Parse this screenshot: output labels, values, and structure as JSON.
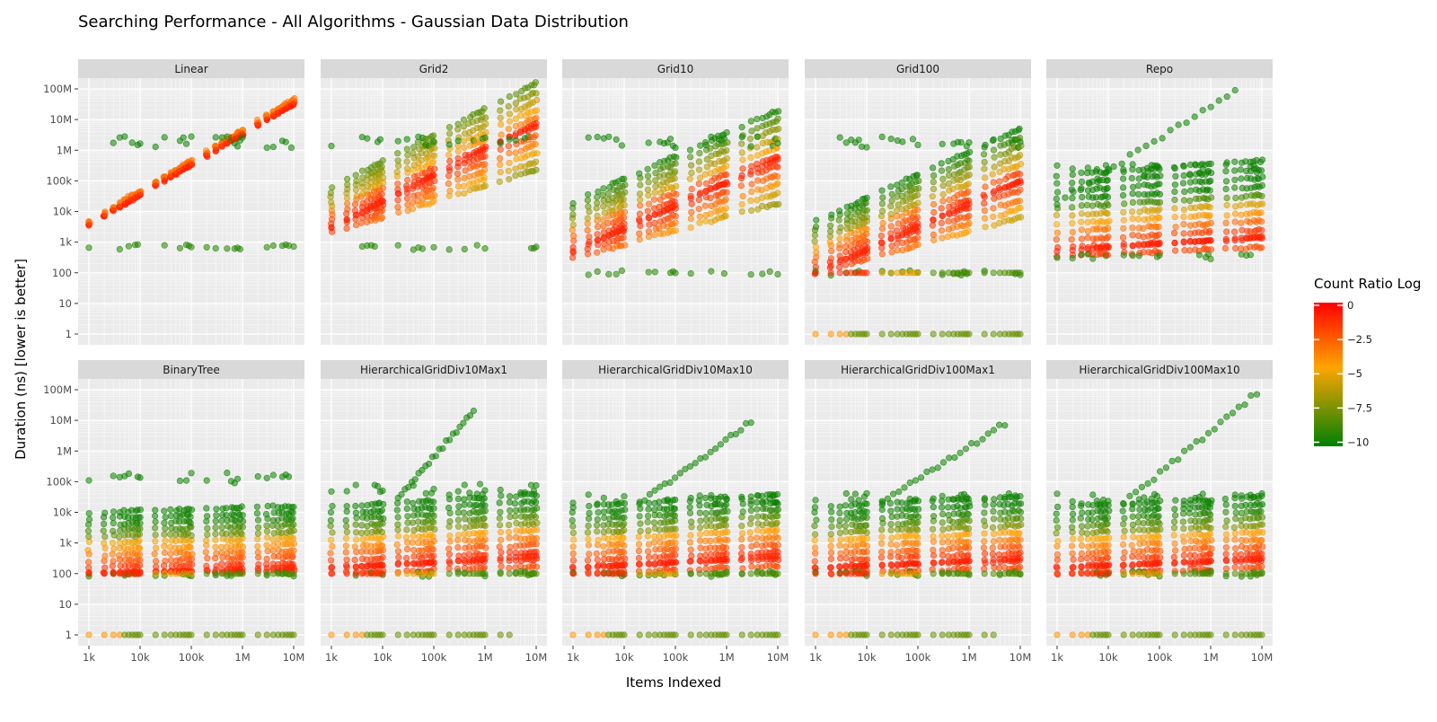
{
  "chart_data": {
    "type": "scatter",
    "title": "Searching Performance - All Algorithms - Gaussian Data Distribution",
    "xlabel": "Items Indexed",
    "ylabel": "Duration (ns) [lower is better]",
    "x_scale": "log",
    "y_scale": "log",
    "xlim": [
      1000,
      10000000
    ],
    "ylim": [
      1,
      100000000
    ],
    "x_ticks": [
      {
        "value": 1000,
        "label": "1k"
      },
      {
        "value": 10000,
        "label": "10k"
      },
      {
        "value": 100000,
        "label": "100k"
      },
      {
        "value": 1000000,
        "label": "1M"
      },
      {
        "value": 10000000,
        "label": "10M"
      }
    ],
    "y_ticks": [
      {
        "value": 1,
        "label": "1"
      },
      {
        "value": 10,
        "label": "10"
      },
      {
        "value": 100,
        "label": "100"
      },
      {
        "value": 1000,
        "label": "1k"
      },
      {
        "value": 10000,
        "label": "10k"
      },
      {
        "value": 100000,
        "label": "100k"
      },
      {
        "value": 1000000,
        "label": "1M"
      },
      {
        "value": 10000000,
        "label": "10M"
      },
      {
        "value": 100000000,
        "label": "100M"
      }
    ],
    "grid": true,
    "legend": {
      "title": "Count Ratio Log",
      "placement": "right",
      "type": "colorbar",
      "ticks": [
        {
          "value": 0,
          "label": "0"
        },
        {
          "value": -2.5,
          "label": "−2.5"
        },
        {
          "value": -5,
          "label": "−5"
        },
        {
          "value": -7.5,
          "label": "−7.5"
        },
        {
          "value": -10,
          "label": "−10"
        }
      ],
      "range": [
        -10.3,
        0.2
      ],
      "colors": {
        "high": "#ff0000",
        "mid": "#ffa500",
        "low": "#008000"
      }
    },
    "x_sizes": [
      1000,
      2000,
      3000,
      4000,
      5000,
      6000,
      7000,
      8000,
      9000,
      10000,
      20000,
      30000,
      40000,
      50000,
      60000,
      70000,
      80000,
      90000,
      100000,
      200000,
      300000,
      400000,
      500000,
      600000,
      700000,
      800000,
      900000,
      1000000,
      2000000,
      3000000,
      4000000,
      5000000,
      6000000,
      7000000,
      8000000,
      9000000,
      10000000
    ],
    "facets": [
      {
        "name": "Linear",
        "floor": 3500,
        "floor_slope": 0.99,
        "cloud_low": 3500,
        "cloud_high": 3500,
        "slope": 0.99,
        "spread": 0.15,
        "outlier_low": 700,
        "outlier_high": 2000000,
        "diag": [],
        "low_rows": []
      },
      {
        "name": "Grid2",
        "floor": 3000,
        "floor_slope": 0.85,
        "cloud_low": 2000,
        "cloud_high": 60000,
        "slope": 0.85,
        "spread": 0.5,
        "outlier_low": 700,
        "outlier_high": 2000000,
        "diag": [],
        "low_rows": []
      },
      {
        "name": "Grid10",
        "floor": 500,
        "floor_slope": 0.75,
        "cloud_low": 300,
        "cloud_high": 20000,
        "slope": 0.75,
        "spread": 0.5,
        "outlier_low": 100,
        "outlier_high": 2000000,
        "diag": [],
        "low_rows": []
      },
      {
        "name": "Grid100",
        "floor": 100,
        "floor_slope": 0.75,
        "cloud_low": 100,
        "cloud_high": 5000,
        "slope": 0.75,
        "spread": 0.5,
        "outlier_low": 100,
        "outlier_high": 2000000,
        "diag": [],
        "low_rows": [
          100,
          1
        ]
      },
      {
        "name": "Repo",
        "floor": 500,
        "floor_slope": 0.12,
        "cloud_low": 350,
        "cloud_high": 150000,
        "slope": 0.12,
        "spread": 0.5,
        "outlier_low": 350,
        "outlier_high": 250000,
        "diag": [
          [
            1000,
            20000
          ],
          [
            3000000,
            90000000
          ]
        ],
        "low_rows": []
      },
      {
        "name": "BinaryTree",
        "floor": 100,
        "floor_slope": 0.05,
        "cloud_low": 100,
        "cloud_high": 10000,
        "slope": 0.05,
        "spread": 0.5,
        "outlier_low": 100,
        "outlier_high": 150000,
        "diag": [],
        "low_rows": [
          100,
          1
        ]
      },
      {
        "name": "HierarchicalGridDiv10Max1",
        "floor": 150,
        "floor_slope": 0.1,
        "cloud_low": 100,
        "cloud_high": 15000,
        "slope": 0.1,
        "spread": 0.5,
        "outlier_low": 100,
        "outlier_high": 60000,
        "diag": [
          [
            20000,
            30000
          ],
          [
            600000,
            20000000
          ]
        ],
        "low_rows": [
          100,
          1
        ]
      },
      {
        "name": "HierarchicalGridDiv10Max10",
        "floor": 150,
        "floor_slope": 0.1,
        "cloud_low": 100,
        "cloud_high": 15000,
        "slope": 0.1,
        "spread": 0.5,
        "outlier_low": 100,
        "outlier_high": 30000,
        "diag": [
          [
            20000,
            20000
          ],
          [
            3000000,
            9000000
          ]
        ],
        "low_rows": [
          100,
          1
        ]
      },
      {
        "name": "HierarchicalGridDiv100Max1",
        "floor": 150,
        "floor_slope": 0.08,
        "cloud_low": 100,
        "cloud_high": 15000,
        "slope": 0.08,
        "spread": 0.5,
        "outlier_low": 100,
        "outlier_high": 30000,
        "diag": [
          [
            20000,
            20000
          ],
          [
            5000000,
            8000000
          ]
        ],
        "low_rows": [
          100,
          1
        ]
      },
      {
        "name": "HierarchicalGridDiv100Max10",
        "floor": 150,
        "floor_slope": 0.08,
        "cloud_low": 100,
        "cloud_high": 15000,
        "slope": 0.08,
        "spread": 0.5,
        "outlier_low": 100,
        "outlier_high": 30000,
        "diag": [
          [
            20000,
            20000
          ],
          [
            8000000,
            80000000
          ]
        ],
        "low_rows": [
          100,
          1
        ]
      }
    ]
  }
}
